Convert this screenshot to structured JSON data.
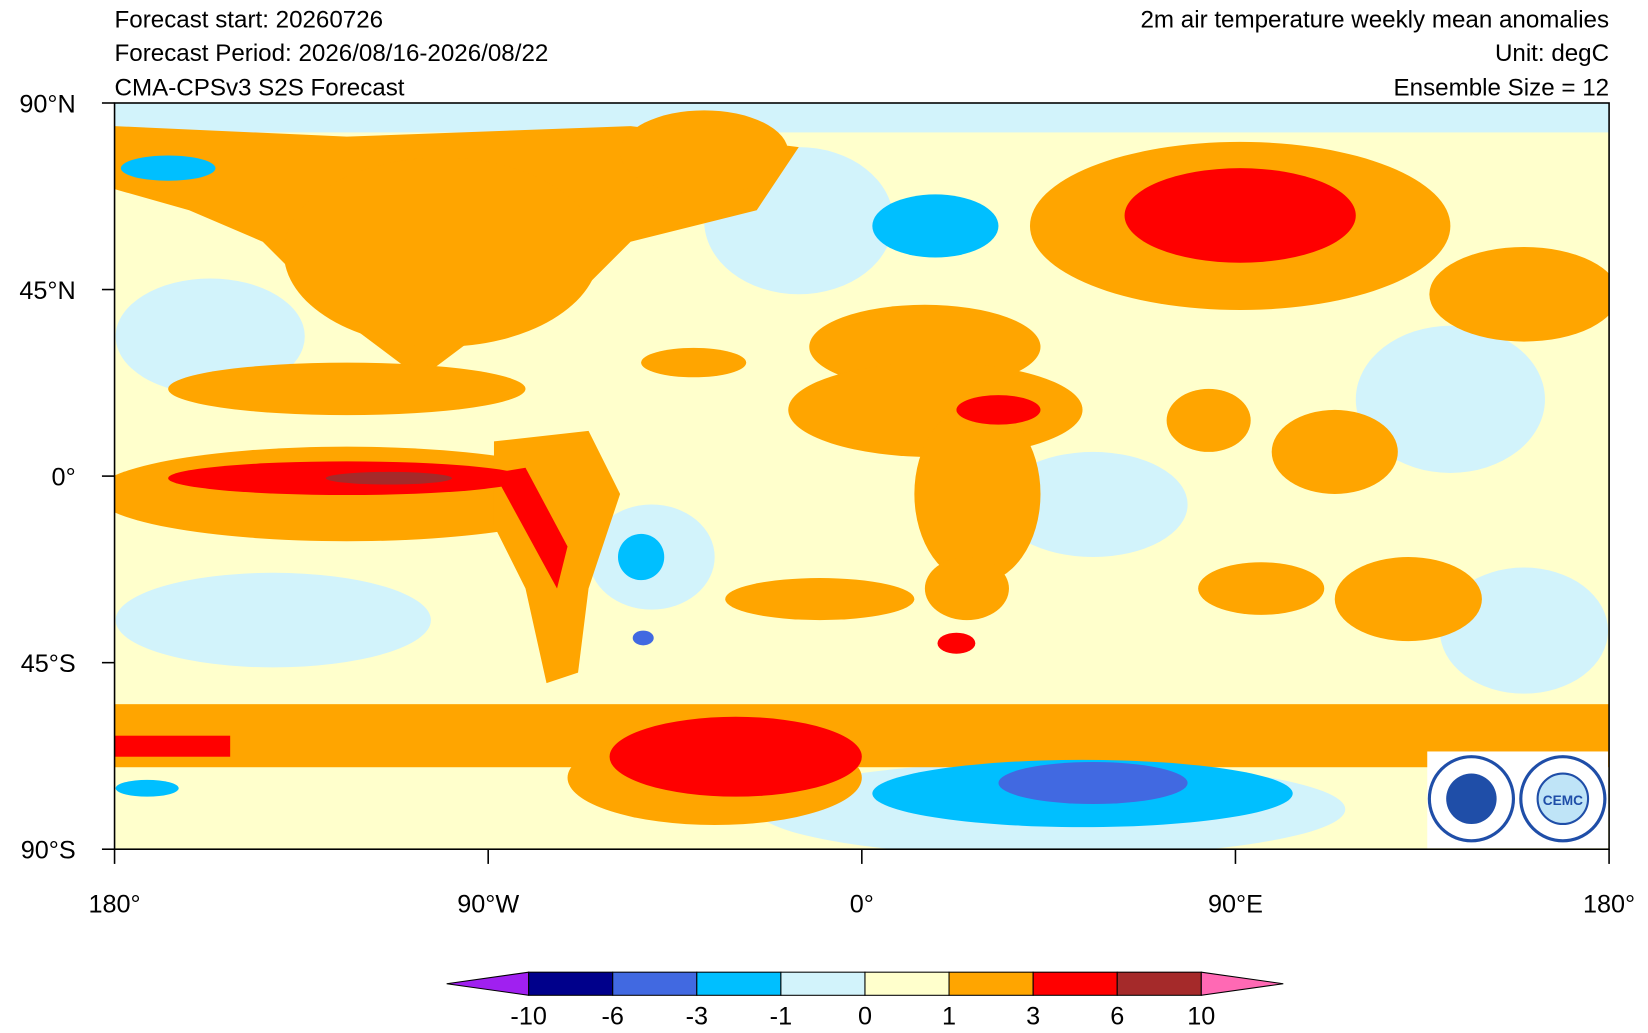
{
  "header": {
    "left": [
      "Forecast start: 20260726",
      "Forecast Period: 2026/08/16-2026/08/22",
      "CMA-CPSv3 S2S Forecast"
    ],
    "right": [
      "2m air temperature weekly mean anomalies",
      "Unit: degC",
      "Ensemble Size = 12"
    ]
  },
  "map": {
    "lat_labels": [
      "90°N",
      "45°N",
      "0°",
      "45°S",
      "90°S"
    ],
    "lon_labels": [
      "180°",
      "90°W",
      "0°",
      "90°E",
      "180°"
    ],
    "logo_text": "CEMC"
  },
  "colorbar": {
    "levels": [
      -10,
      -6,
      -3,
      -1,
      0,
      1,
      3,
      6,
      10
    ],
    "colors": [
      "#a020f0",
      "#00008b",
      "#4169e1",
      "#00bfff",
      "#d2f3fb",
      "#ffffcc",
      "#ffa500",
      "#ff0000",
      "#a52a2a",
      "#ff69b4"
    ]
  }
}
